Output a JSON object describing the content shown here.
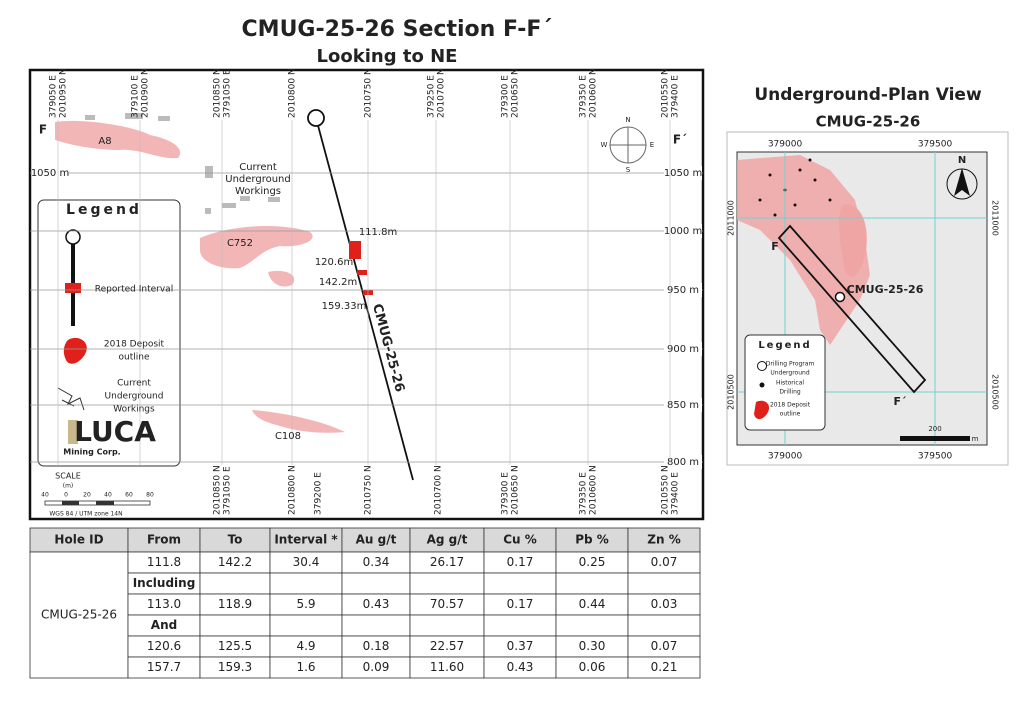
{
  "title": "CMUG-25-26  Section F-F´",
  "subtitle": "Looking to NE",
  "section": {
    "top_labels": [
      [
        "379050 E",
        "2010950 N"
      ],
      [
        "379100 E",
        "2010900 N"
      ],
      [
        "2010850 N",
        "3791050 E"
      ],
      [
        "2010800 N"
      ],
      [
        "2010750 N"
      ],
      [
        "379250 E",
        "2010700 N"
      ],
      [
        "379300 E",
        "2010650 N"
      ],
      [
        "379350 E",
        "2010600 N"
      ],
      [
        "2010550 N",
        "379400 E"
      ]
    ],
    "bottom_labels": [
      [
        "2010850 N",
        "3791050 E"
      ],
      [
        "2010800 N"
      ],
      [
        "379200 E"
      ],
      [
        "2010750 N"
      ],
      [
        "2010700 N"
      ],
      [
        "379300 E",
        "2010650 N"
      ],
      [
        "379350 E",
        "2010600 N"
      ],
      [
        "2010550 N",
        "379400 E"
      ]
    ],
    "elevations": [
      "1050 m",
      "1000 m",
      "950 m",
      "900 m",
      "850 m",
      "800 m"
    ],
    "left_elevation": "1050 m",
    "section_start": "F",
    "section_end": "F´",
    "zones": [
      "A8",
      "C752",
      "C108"
    ],
    "workings_label": [
      "Current",
      "Underground",
      "Workings"
    ],
    "hole_label": "CMUG-25-26",
    "depths": [
      "111.8m",
      "120.6m",
      "142.2m",
      "159.33m"
    ],
    "compass": [
      "N",
      "E",
      "S",
      "W"
    ],
    "legend": {
      "title": "Legend",
      "items": [
        [
          "Reported Interval"
        ],
        [
          "2018 Deposit",
          "outline"
        ],
        [
          "Current",
          "Underground",
          "Workings"
        ]
      ],
      "logo": "LUCA",
      "logo_sub": "Mining Corp."
    },
    "scale": {
      "label": "SCALE",
      "unit": "(m)",
      "ticks": [
        "40",
        "0",
        "20",
        "40",
        "60",
        "80"
      ],
      "crs": "WGS 84 / UTM zone 14N"
    }
  },
  "plan": {
    "title": "Underground-Plan View",
    "subtitle": "CMUG-25-26",
    "x_labels": [
      "379000",
      "379500"
    ],
    "y_labels": [
      "2011000",
      "2010500"
    ],
    "hole": "CMUG-25-26",
    "start": "F",
    "end": "F´",
    "north": "N",
    "legend": {
      "title": "Legend",
      "items": [
        [
          "Drilling Program",
          "Underground"
        ],
        [
          "Historical",
          "Drilling"
        ],
        [
          "2018 Deposit",
          "outline"
        ]
      ]
    },
    "scale": "200",
    "scale_unit": "m"
  },
  "table": {
    "header": [
      "Hole ID",
      "From",
      "To",
      "Interval *",
      "Au g/t",
      "Ag g/t",
      "Cu %",
      "Pb %",
      "Zn %"
    ],
    "hole": "CMUG-25-26",
    "rows": [
      [
        "111.8",
        "142.2",
        "30.4",
        "0.34",
        "26.17",
        "0.17",
        "0.25",
        "0.07"
      ],
      [
        "Including"
      ],
      [
        "113.0",
        "118.9",
        "5.9",
        "0.43",
        "70.57",
        "0.17",
        "0.44",
        "0.03"
      ],
      [
        "And"
      ],
      [
        "120.6",
        "125.5",
        "4.9",
        "0.18",
        "22.57",
        "0.37",
        "0.30",
        "0.07"
      ],
      [
        "157.7",
        "159.3",
        "1.6",
        "0.09",
        "11.60",
        "0.43",
        "0.06",
        "0.21"
      ]
    ]
  }
}
